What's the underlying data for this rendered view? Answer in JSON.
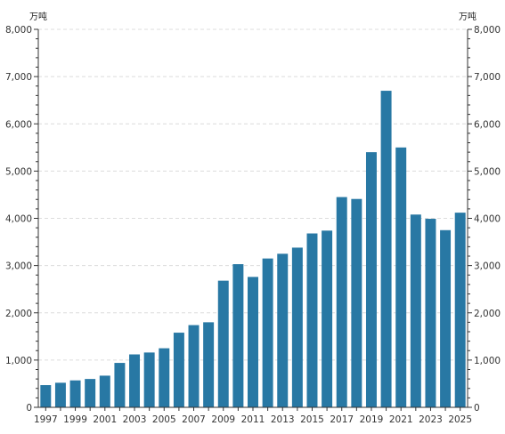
{
  "chart_data": {
    "type": "bar",
    "title": "",
    "y_unit_left": "万吨",
    "y_unit_right": "万吨",
    "ylim": [
      0,
      8000
    ],
    "yticks": [
      "0",
      "1,000",
      "2,000",
      "3,000",
      "4,000",
      "5,000",
      "6,000",
      "7,000",
      "8,000"
    ],
    "xtick_labels": [
      "1997",
      "1999",
      "2001",
      "2003",
      "2005",
      "2007",
      "2009",
      "2011",
      "2013",
      "2015",
      "2017",
      "2019",
      "2021",
      "2023",
      "2025"
    ],
    "categories": [
      "1997",
      "1998",
      "1999",
      "2000",
      "2001",
      "2002",
      "2003",
      "2004",
      "2005",
      "2006",
      "2007",
      "2008",
      "2009",
      "2010",
      "2011",
      "2012",
      "2013",
      "2014",
      "2015",
      "2016",
      "2017",
      "2018",
      "2019",
      "2020",
      "2021",
      "2022",
      "2023",
      "2024",
      "2025"
    ],
    "values": [
      470,
      520,
      570,
      600,
      670,
      940,
      1120,
      1160,
      1250,
      1580,
      1740,
      1800,
      2680,
      3030,
      2760,
      3150,
      3250,
      3380,
      3680,
      3740,
      4450,
      4410,
      5400,
      6700,
      5500,
      4080,
      3990,
      3750,
      4120
    ],
    "bar_color": "#2878a4",
    "grid": true,
    "legend": "none"
  }
}
